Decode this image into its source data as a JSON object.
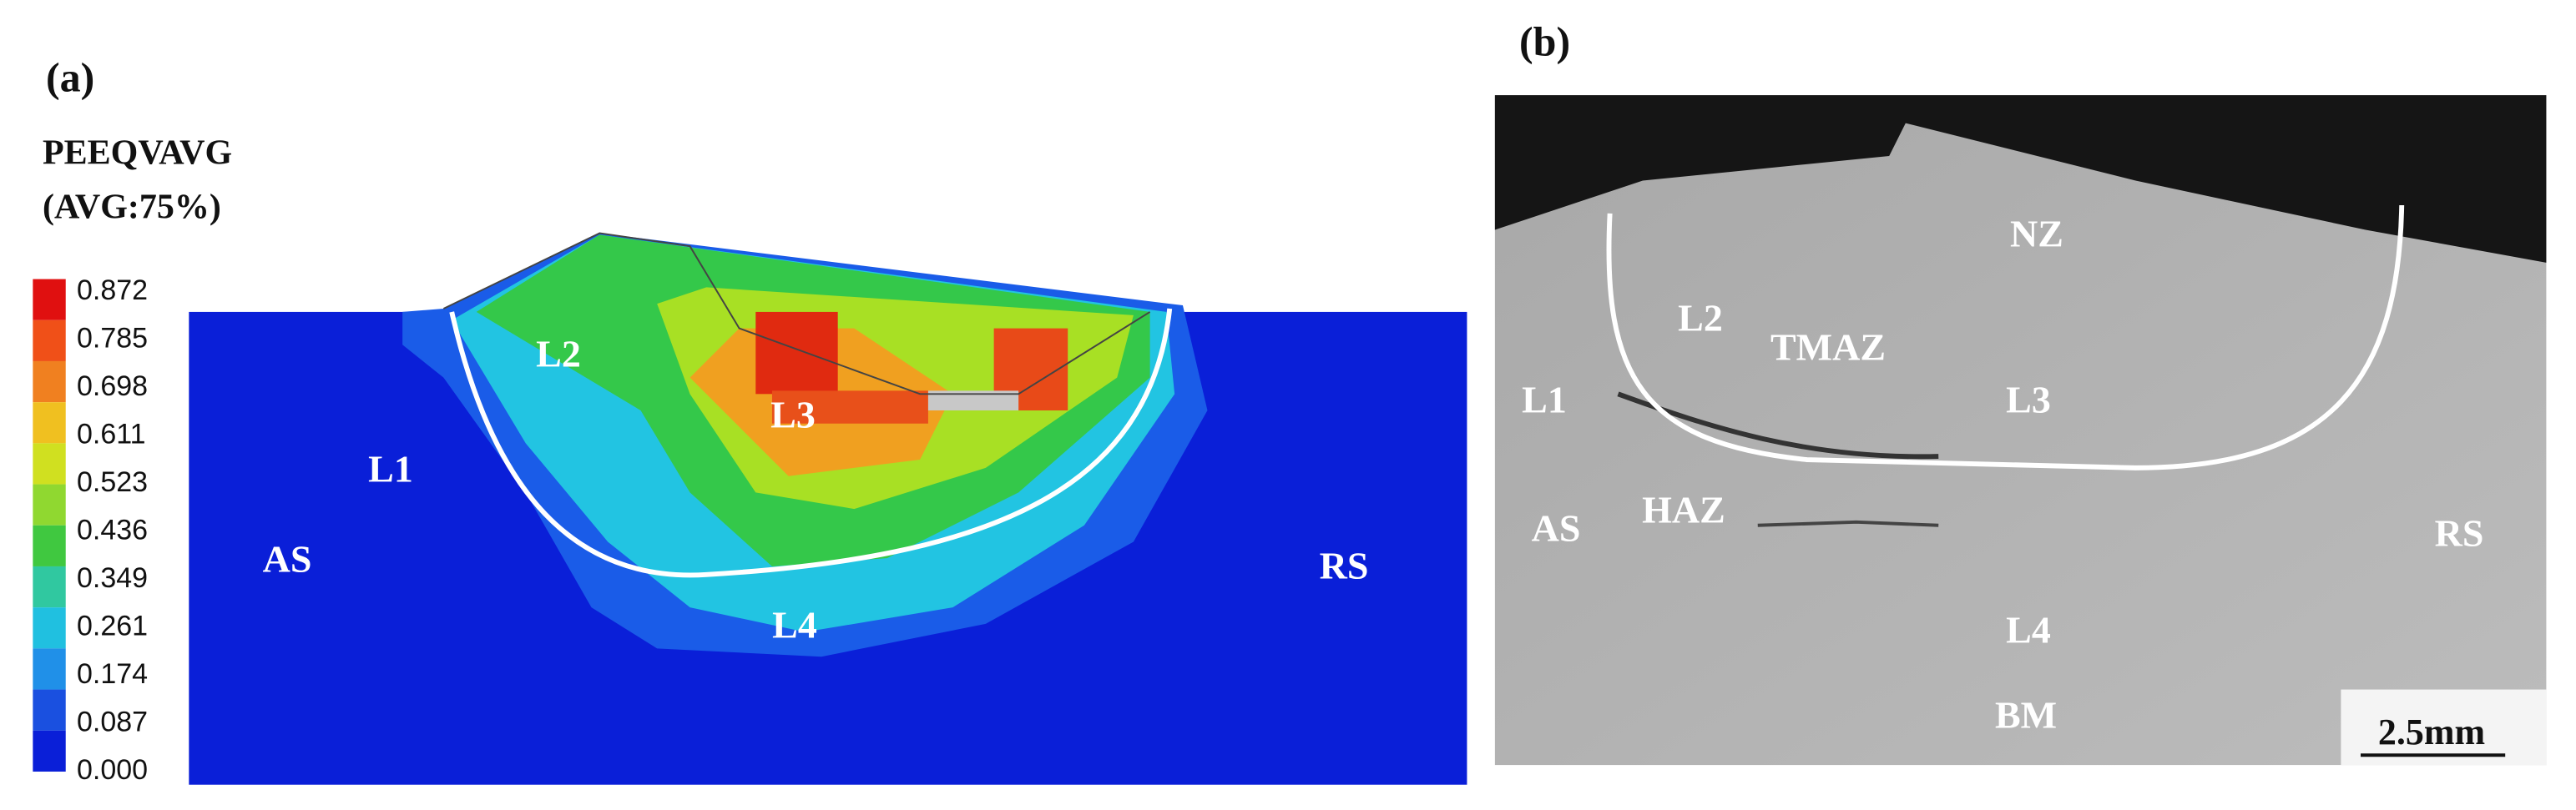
{
  "panel_a": {
    "label": "(a)",
    "legend_title": [
      "PEEQVAVG",
      "(AVG:75%)"
    ],
    "legend_ticks": [
      "0.872",
      "0.785",
      "0.698",
      "0.611",
      "0.523",
      "0.436",
      "0.349",
      "0.261",
      "0.174",
      "0.087",
      "0.000"
    ],
    "region_labels": [
      "L2",
      "L3",
      "L1",
      "AS",
      "RS",
      "L4"
    ]
  },
  "panel_b": {
    "label": "(b)",
    "region_labels": [
      "NZ",
      "L2",
      "TMAZ",
      "L1",
      "L3",
      "AS",
      "HAZ",
      "RS",
      "L4",
      "BM"
    ],
    "scale_bar": "2.5mm"
  }
}
